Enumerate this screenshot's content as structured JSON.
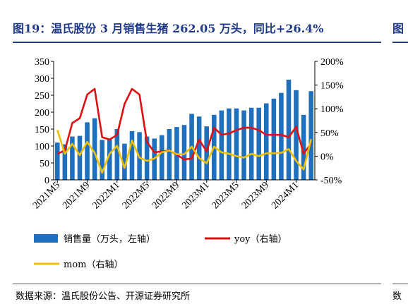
{
  "title": "图19：温氏股份 3 月销售生猪 262.05 万头，同比+26.4%",
  "title_right": "图",
  "source": "数据来源：温氏股份公告、开源证券研究所",
  "source_right": "数",
  "colors": {
    "bar": "#1f6fbf",
    "yoy": "#e01010",
    "mom": "#f0c000",
    "title": "#1f3a8a"
  },
  "chart_data": {
    "type": "bar",
    "x": [
      "2021M5",
      "2021M6",
      "2021M7",
      "2021M8",
      "2021M9",
      "2021M10",
      "2021M11",
      "2021M12",
      "2022M1",
      "2022M2",
      "2022M3",
      "2022M4",
      "2022M5",
      "2022M6",
      "2022M7",
      "2022M8",
      "2022M9",
      "2022M10",
      "2022M11",
      "2022M12",
      "2023M1",
      "2023M2",
      "2023M3",
      "2023M4",
      "2023M5",
      "2023M6",
      "2023M7",
      "2023M8",
      "2023M9",
      "2023M10",
      "2023M11",
      "2023M12",
      "2024M1",
      "2024M2",
      "2024M3"
    ],
    "x_tick_labels": [
      "2021M5",
      "2021M9",
      "2022M1",
      "2022M5",
      "2022M9",
      "2023M1",
      "2023M5",
      "2023M9",
      "2024M1"
    ],
    "x_tick_step": 4,
    "y_left": {
      "lim": [
        0,
        350
      ],
      "ticks": [
        "0",
        "50",
        "100",
        "150",
        "200",
        "250",
        "300",
        "350"
      ],
      "tick_values": [
        0,
        50,
        100,
        150,
        200,
        250,
        300,
        350
      ]
    },
    "y_right": {
      "lim": [
        -50,
        200
      ],
      "ticks": [
        "-50%",
        "0%",
        "50%",
        "100%",
        "150%",
        "200%"
      ],
      "tick_values": [
        -50,
        0,
        50,
        100,
        150,
        200
      ]
    },
    "series": [
      {
        "name": "销售量（万头，左轴）",
        "type": "bar",
        "axis": "left",
        "values": [
          110,
          105,
          128,
          130,
          170,
          182,
          118,
          122,
          150,
          107,
          144,
          141,
          128,
          122,
          132,
          150,
          156,
          162,
          195,
          187,
          158,
          192,
          205,
          211,
          211,
          205,
          213,
          213,
          226,
          240,
          257,
          296,
          265,
          192,
          262.05
        ]
      },
      {
        "name": "yoy（右轴）",
        "type": "line",
        "axis": "right",
        "values": [
          5,
          12,
          70,
          80,
          130,
          142,
          40,
          35,
          45,
          110,
          142,
          130,
          30,
          8,
          10,
          12,
          3,
          -7,
          -5,
          35,
          10,
          60,
          45,
          48,
          55,
          60,
          60,
          55,
          45,
          45,
          45,
          40,
          62,
          5,
          26.4
        ]
      },
      {
        "name": "mom（右轴）",
        "type": "line",
        "axis": "right",
        "values": [
          55,
          5,
          26,
          2,
          30,
          7,
          -35,
          5,
          22,
          -25,
          33,
          -3,
          -10,
          -5,
          8,
          12,
          4,
          4,
          20,
          -4,
          -15,
          20,
          8,
          5,
          0,
          -3,
          5,
          0,
          6,
          6,
          7,
          15,
          -10,
          -28,
          36
        ]
      }
    ],
    "legend": [
      "销售量（万头，左轴）",
      "yoy（右轴）",
      "mom（右轴）"
    ],
    "legend_position": "bottom",
    "grid": false
  }
}
